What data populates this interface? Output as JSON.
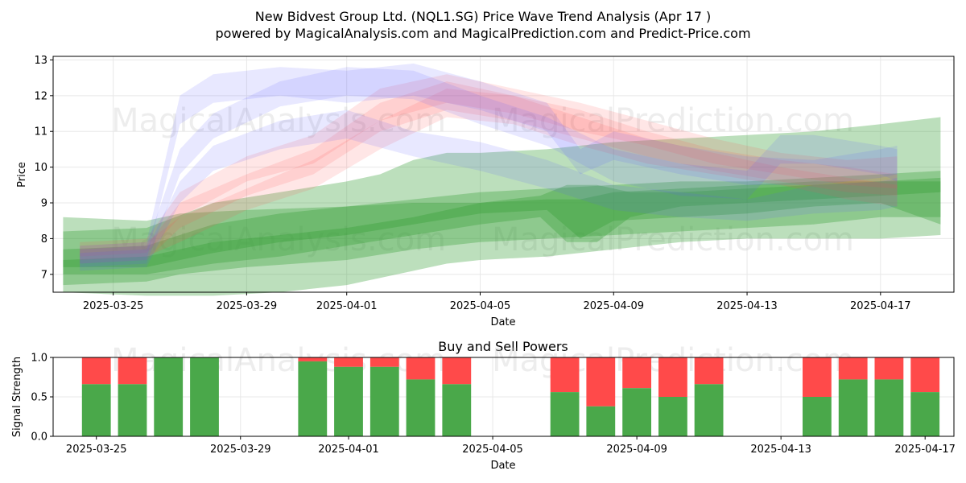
{
  "title": "New Bidvest Group Ltd. (NQL1.SG) Price Wave Trend Analysis (Apr 17 )",
  "subtitle": "powered by MagicalAnalysis.com and MagicalPrediction.com and Predict-Price.com",
  "watermarks": [
    "MagicalAnalysis.com",
    "MagicalPrediction.com"
  ],
  "colors": {
    "green": "#2e9a2e",
    "red": "#ff4d4d",
    "blue": "#5a5aff",
    "bar_green": "#4aa84a",
    "bar_red": "#ff4a4a",
    "grid": "#e8e8e8"
  },
  "chart_data": [
    {
      "type": "area",
      "name": "price-wave",
      "xlabel": "Date",
      "ylabel": "Price",
      "x_day_range": [
        -1.8,
        25.2
      ],
      "xticks": [
        {
          "day": 0,
          "label": "2025-03-25"
        },
        {
          "day": 4,
          "label": "2025-03-29"
        },
        {
          "day": 7,
          "label": "2025-04-01"
        },
        {
          "day": 11,
          "label": "2025-04-05"
        },
        {
          "day": 15,
          "label": "2025-04-09"
        },
        {
          "day": 19,
          "label": "2025-04-13"
        },
        {
          "day": 23,
          "label": "2025-04-17"
        }
      ],
      "ylim": [
        6.5,
        13.1
      ],
      "yticks": [
        7,
        8,
        9,
        10,
        11,
        12,
        13
      ],
      "grid": true,
      "band_groups": [
        {
          "color": "green",
          "opacity": 0.32,
          "bands": [
            {
              "x": [
                -1.5,
                1,
                2,
                4,
                7,
                9,
                11,
                13,
                15,
                17,
                19,
                21,
                23,
                24.8
              ],
              "upper": [
                8.6,
                8.5,
                8.7,
                8.8,
                8.9,
                9.1,
                9.3,
                9.4,
                9.5,
                9.6,
                9.6,
                9.7,
                9.8,
                9.9
              ],
              "lower": [
                6.7,
                6.8,
                7.0,
                7.2,
                7.4,
                7.7,
                7.9,
                8.0,
                8.1,
                8.2,
                8.3,
                8.4,
                8.6,
                8.6
              ]
            },
            {
              "x": [
                -1.5,
                1,
                3,
                5,
                7,
                8,
                9,
                10,
                11,
                13,
                15,
                17,
                19,
                21,
                23,
                24.8
              ],
              "upper": [
                8.2,
                8.3,
                9.0,
                9.3,
                9.6,
                9.8,
                10.2,
                10.4,
                10.4,
                10.5,
                10.7,
                10.8,
                10.9,
                11.0,
                11.2,
                11.4
              ],
              "lower": [
                6.5,
                6.4,
                6.4,
                6.5,
                6.7,
                6.9,
                7.1,
                7.3,
                7.4,
                7.5,
                7.7,
                7.9,
                8.0,
                8.0,
                8.0,
                8.1
              ]
            },
            {
              "x": [
                -1.5,
                1,
                3,
                5,
                7,
                9,
                11,
                13,
                14,
                15,
                17,
                19,
                21,
                23,
                24.8
              ],
              "upper": [
                7.7,
                7.8,
                8.4,
                8.7,
                8.9,
                9.0,
                9.0,
                9.1,
                9.1,
                9.3,
                9.4,
                9.5,
                9.6,
                9.6,
                9.6
              ],
              "lower": [
                7.2,
                7.2,
                7.6,
                7.9,
                8.1,
                8.4,
                8.7,
                8.8,
                8.0,
                8.5,
                8.6,
                8.7,
                8.9,
                9.0,
                8.4
              ]
            },
            {
              "x": [
                -1.5,
                1,
                3,
                5,
                7,
                9,
                11,
                12.8,
                13.6,
                14.5,
                15.5,
                17,
                19,
                21,
                23,
                24.8
              ],
              "upper": [
                7.4,
                7.5,
                7.9,
                8.1,
                8.3,
                8.6,
                9.0,
                9.2,
                9.5,
                9.5,
                9.3,
                9.3,
                9.4,
                9.5,
                9.6,
                9.7
              ],
              "lower": [
                7.0,
                7.0,
                7.3,
                7.5,
                7.8,
                8.1,
                8.4,
                8.6,
                7.9,
                7.9,
                8.6,
                8.9,
                9.0,
                9.1,
                9.2,
                9.3
              ]
            }
          ]
        },
        {
          "color": "red",
          "opacity": 0.14,
          "bands": [
            {
              "x": [
                -1,
                1,
                2,
                4,
                6,
                8,
                10,
                12,
                14,
                16,
                18,
                20,
                22,
                23.5
              ],
              "upper": [
                7.7,
                7.8,
                9.0,
                9.8,
                10.5,
                11.8,
                12.4,
                12.0,
                11.6,
                11.0,
                10.5,
                10.2,
                10.0,
                9.8
              ],
              "lower": [
                7.3,
                7.4,
                8.3,
                9.2,
                9.8,
                11.0,
                11.6,
                11.3,
                10.8,
                10.3,
                9.9,
                9.6,
                9.3,
                9.2
              ]
            },
            {
              "x": [
                -1,
                1,
                2,
                4,
                6,
                8,
                10,
                12,
                14,
                16,
                18,
                20,
                22,
                23.5
              ],
              "upper": [
                7.8,
                7.9,
                8.6,
                9.4,
                10.2,
                11.3,
                12.2,
                12.0,
                11.4,
                10.8,
                10.4,
                10.0,
                9.7,
                9.5
              ],
              "lower": [
                7.4,
                7.5,
                7.9,
                8.8,
                9.4,
                10.5,
                11.4,
                11.2,
                10.6,
                10.1,
                9.8,
                9.5,
                9.1,
                8.9
              ]
            },
            {
              "x": [
                -1,
                1,
                2,
                4,
                6,
                8,
                10,
                12,
                14,
                16,
                18,
                20,
                22,
                23.5
              ],
              "upper": [
                7.9,
                8.0,
                9.3,
                10.3,
                10.9,
                12.2,
                12.6,
                12.2,
                11.8,
                11.3,
                10.8,
                10.4,
                10.2,
                10.3
              ],
              "lower": [
                7.5,
                7.6,
                8.6,
                9.6,
                10.1,
                11.3,
                11.8,
                11.5,
                11.0,
                10.6,
                10.1,
                9.8,
                9.5,
                9.4
              ]
            }
          ]
        },
        {
          "color": "blue",
          "opacity": 0.14,
          "bands": [
            {
              "x": [
                -1,
                1,
                2,
                3,
                5,
                7,
                9,
                11,
                13,
                14,
                15,
                17,
                19,
                21,
                23,
                23.5
              ],
              "upper": [
                7.8,
                7.9,
                12.0,
                12.6,
                12.8,
                12.7,
                12.9,
                12.4,
                11.8,
                10.5,
                11.0,
                10.6,
                10.3,
                10.2,
                10.5,
                10.6
              ],
              "lower": [
                7.3,
                7.4,
                11.2,
                11.8,
                12.0,
                11.8,
                12.0,
                11.6,
                11.0,
                9.8,
                10.2,
                9.8,
                9.5,
                9.5,
                9.7,
                9.8
              ]
            },
            {
              "x": [
                -1,
                1,
                2,
                3,
                5,
                7,
                9,
                11,
                13,
                15,
                17,
                19,
                20,
                21,
                23,
                23.5
              ],
              "upper": [
                7.7,
                7.8,
                10.5,
                11.5,
                12.4,
                12.8,
                12.7,
                12.0,
                11.4,
                10.5,
                10.1,
                9.9,
                10.9,
                10.9,
                10.6,
                10.5
              ],
              "lower": [
                7.2,
                7.3,
                9.8,
                10.8,
                11.7,
                12.0,
                11.9,
                11.2,
                10.6,
                9.6,
                9.2,
                9.1,
                10.1,
                10.1,
                9.8,
                9.6
              ]
            },
            {
              "x": [
                -1,
                1,
                2,
                3,
                5,
                7,
                9,
                11,
                13,
                15,
                17,
                19,
                21,
                23,
                23.5
              ],
              "upper": [
                7.6,
                7.7,
                9.6,
                10.6,
                11.3,
                11.6,
                11.0,
                10.7,
                10.2,
                9.5,
                9.3,
                9.1,
                9.5,
                9.6,
                9.7
              ],
              "lower": [
                7.1,
                7.2,
                9.0,
                9.9,
                10.5,
                10.8,
                10.3,
                9.9,
                9.4,
                8.8,
                8.6,
                8.5,
                8.7,
                8.8,
                8.9
              ]
            }
          ]
        }
      ]
    },
    {
      "type": "bar",
      "name": "buy-sell-powers",
      "title": "Buy and Sell Powers",
      "xlabel": "Date",
      "ylabel": "Signal Strength",
      "ylim": [
        0,
        1
      ],
      "yticks": [
        0.0,
        0.5,
        1.0
      ],
      "x_day_range": [
        -1.2,
        23.8
      ],
      "xticks": [
        {
          "day": 0,
          "label": "2025-03-25"
        },
        {
          "day": 4,
          "label": "2025-03-29"
        },
        {
          "day": 7,
          "label": "2025-04-01"
        },
        {
          "day": 11,
          "label": "2025-04-05"
        },
        {
          "day": 15,
          "label": "2025-04-09"
        },
        {
          "day": 19,
          "label": "2025-04-13"
        },
        {
          "day": 23,
          "label": "2025-04-17"
        }
      ],
      "bars": [
        {
          "day": 0,
          "buy": 0.66
        },
        {
          "day": 1,
          "buy": 0.66
        },
        {
          "day": 2,
          "buy": 1.0
        },
        {
          "day": 3,
          "buy": 1.0
        },
        {
          "day": 6,
          "buy": 0.95
        },
        {
          "day": 7,
          "buy": 0.88
        },
        {
          "day": 8,
          "buy": 0.88
        },
        {
          "day": 9,
          "buy": 0.72
        },
        {
          "day": 10,
          "buy": 0.66
        },
        {
          "day": 13,
          "buy": 0.56
        },
        {
          "day": 14,
          "buy": 0.38
        },
        {
          "day": 15,
          "buy": 0.61
        },
        {
          "day": 16,
          "buy": 0.5
        },
        {
          "day": 17,
          "buy": 0.66
        },
        {
          "day": 20,
          "buy": 0.5
        },
        {
          "day": 21,
          "buy": 0.72
        },
        {
          "day": 22,
          "buy": 0.72
        },
        {
          "day": 23,
          "buy": 0.56
        }
      ]
    }
  ]
}
